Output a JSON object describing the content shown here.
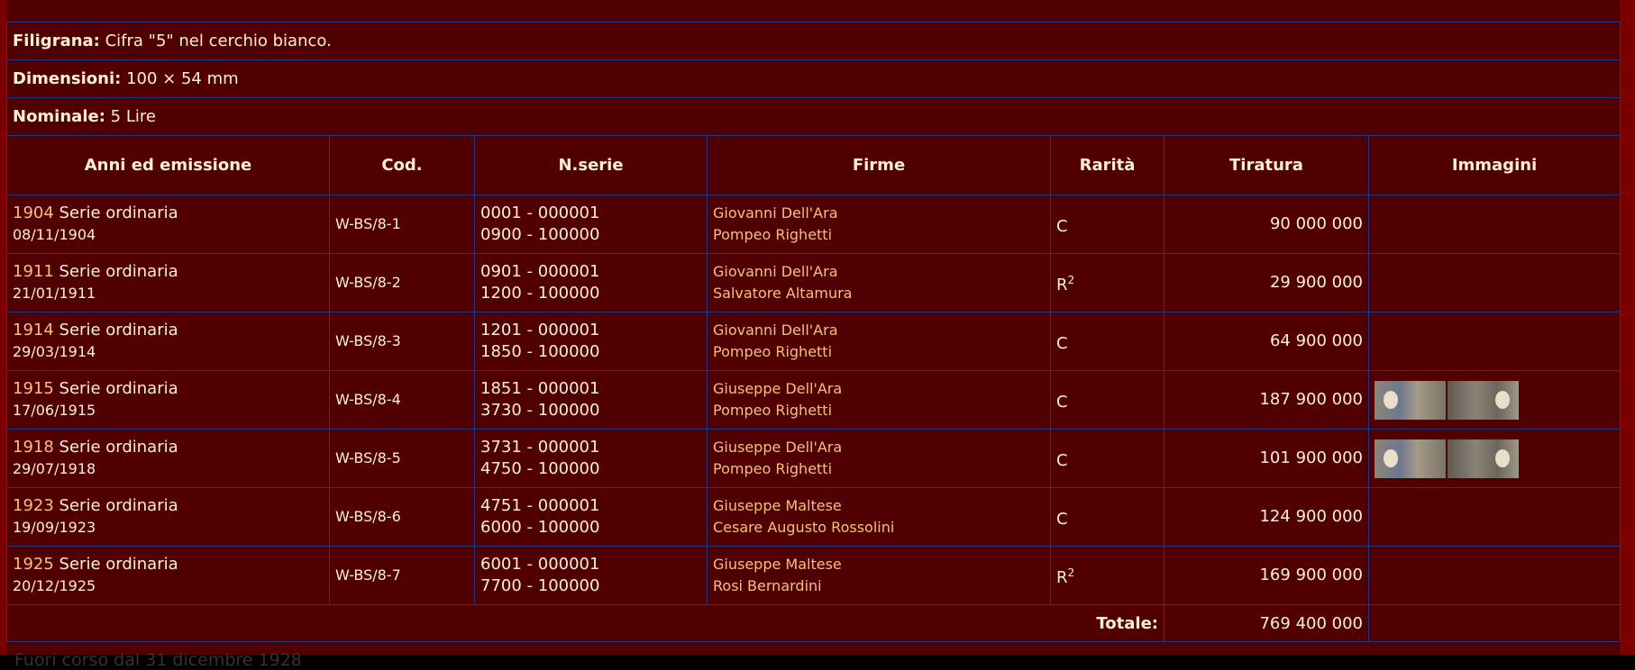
{
  "info": [
    {
      "label": "Filigrana:",
      "value": "Cifra \"5\" nel cerchio bianco."
    },
    {
      "label": "Dimensioni:",
      "value": "100 × 54 mm"
    },
    {
      "label": "Nominale:",
      "value": "5 Lire"
    }
  ],
  "columns": [
    "Anni ed emissione",
    "Cod.",
    "N.serie",
    "Firme",
    "Rarità",
    "Tiratura",
    "Immagini"
  ],
  "rows": [
    {
      "year": "1904",
      "type": "Serie ordinaria",
      "date": "08/11/1904",
      "code": "W-BS/8-1",
      "serie1": "0001 - 000001",
      "serie2": "0900 - 100000",
      "firma1": "Giovanni Dell'Ara",
      "firma2": "Pompeo Righetti",
      "rarity": "C",
      "rarity_sup": "",
      "tiratura": "90 000 000",
      "images": false
    },
    {
      "year": "1911",
      "type": "Serie ordinaria",
      "date": "21/01/1911",
      "code": "W-BS/8-2",
      "serie1": "0901 - 000001",
      "serie2": "1200 - 100000",
      "firma1": "Giovanni Dell'Ara",
      "firma2": "Salvatore Altamura",
      "rarity": "R",
      "rarity_sup": "2",
      "tiratura": "29 900 000",
      "images": false
    },
    {
      "year": "1914",
      "type": "Serie ordinaria",
      "date": "29/03/1914",
      "code": "W-BS/8-3",
      "serie1": "1201 - 000001",
      "serie2": "1850 - 100000",
      "firma1": "Giovanni Dell'Ara",
      "firma2": "Pompeo Righetti",
      "rarity": "C",
      "rarity_sup": "",
      "tiratura": "64 900 000",
      "images": false
    },
    {
      "year": "1915",
      "type": "Serie ordinaria",
      "date": "17/06/1915",
      "code": "W-BS/8-4",
      "serie1": "1851 - 000001",
      "serie2": "3730 - 100000",
      "firma1": "Giuseppe Dell'Ara",
      "firma2": "Pompeo Righetti",
      "rarity": "C",
      "rarity_sup": "",
      "tiratura": "187 900 000",
      "images": true
    },
    {
      "year": "1918",
      "type": "Serie ordinaria",
      "date": "29/07/1918",
      "code": "W-BS/8-5",
      "serie1": "3731 - 000001",
      "serie2": "4750 - 100000",
      "firma1": "Giuseppe Dell'Ara",
      "firma2": "Pompeo Righetti",
      "rarity": "C",
      "rarity_sup": "",
      "tiratura": "101 900 000",
      "images": true
    },
    {
      "year": "1923",
      "type": "Serie ordinaria",
      "date": "19/09/1923",
      "code": "W-BS/8-6",
      "serie1": "4751 - 000001",
      "serie2": "6000 - 100000",
      "firma1": "Giuseppe Maltese",
      "firma2": "Cesare Augusto Rossolini",
      "rarity": "C",
      "rarity_sup": "",
      "tiratura": "124 900 000",
      "images": false
    },
    {
      "year": "1925",
      "type": "Serie ordinaria",
      "date": "20/12/1925",
      "code": "W-BS/8-7",
      "serie1": "6001 - 000001",
      "serie2": "7700 - 100000",
      "firma1": "Giuseppe Maltese",
      "firma2": "Rosi Bernardini",
      "rarity": "R",
      "rarity_sup": "2",
      "tiratura": "169 900 000",
      "images": false
    }
  ],
  "total": {
    "label": "Totale:",
    "value": "769 400 000"
  },
  "footer": "Fuori corso dal 31 dicembre 1928",
  "colors": {
    "background": "#500000",
    "border": "#1c3a86",
    "text": "#fdf0d2",
    "accent": "#f3c27a"
  }
}
